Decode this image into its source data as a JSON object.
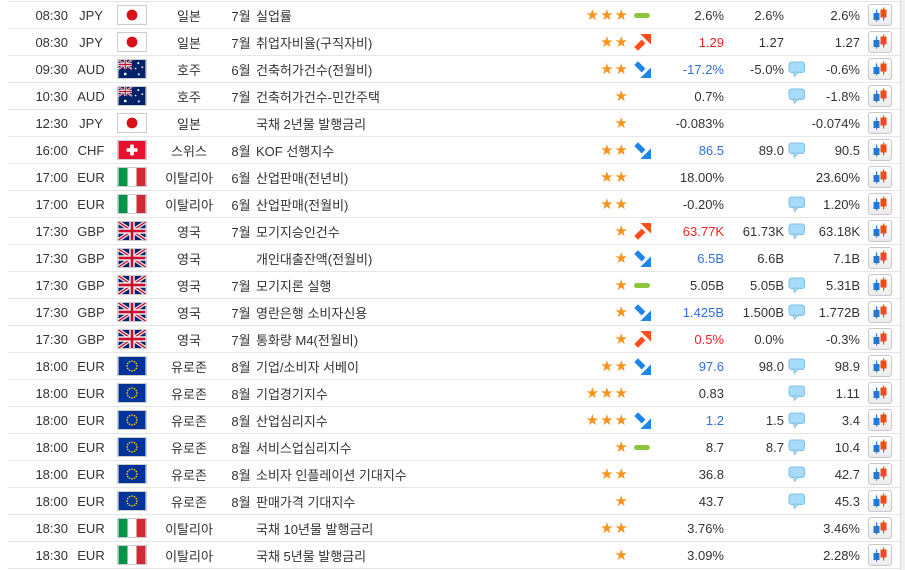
{
  "table_name": "economic-calendar",
  "colors": {
    "text": "#333333",
    "row_border": "#e6e6e6",
    "star_orange": "#F7941D",
    "trend_up_arrow": "#FF4E1C",
    "trend_down_arrow": "#1E86E8",
    "trend_flat_dash": "#8CC63F",
    "actual_up_text": "#f22222",
    "actual_down_text": "#2e6fe0",
    "bubble_fill": "#A8DBF7",
    "bubble_border": "#7FC0E6",
    "candle_blue": "#2478D2",
    "candle_orange": "#F4491C"
  },
  "icons": {
    "star_glyph": "★",
    "importance": "star-icon",
    "trend_up": "diagonal-up-arrow",
    "trend_down": "diagonal-down-arrow",
    "trend_flat": "green-dash",
    "comment": "speech-bubble",
    "chart": "candlestick-chart"
  },
  "rows": [
    {
      "time": "08:30",
      "currency": "JPY",
      "flag": "japan",
      "country": "일본",
      "month": "7월",
      "event": "실업률",
      "stars": 3,
      "trend": "flat",
      "actual": "2.6%",
      "actual_color": "default",
      "forecast": "2.6%",
      "has_bubble": false,
      "previous": "2.6%"
    },
    {
      "time": "08:30",
      "currency": "JPY",
      "flag": "japan",
      "country": "일본",
      "month": "7월",
      "event": "취업자비율(구직자비)",
      "stars": 2,
      "trend": "up",
      "actual": "1.29",
      "actual_color": "red",
      "forecast": "1.27",
      "has_bubble": false,
      "previous": "1.27"
    },
    {
      "time": "09:30",
      "currency": "AUD",
      "flag": "australia",
      "country": "호주",
      "month": "6월",
      "event": "건축허가건수(전월비)",
      "stars": 2,
      "trend": "down",
      "actual": "-17.2%",
      "actual_color": "blue",
      "forecast": "-5.0%",
      "has_bubble": true,
      "previous": "-0.6%"
    },
    {
      "time": "10:30",
      "currency": "AUD",
      "flag": "australia",
      "country": "호주",
      "month": "7월",
      "event": "건축허가건수-민간주택",
      "stars": 1,
      "trend": "none",
      "actual": "0.7%",
      "actual_color": "default",
      "forecast": "",
      "has_bubble": true,
      "previous": "-1.8%"
    },
    {
      "time": "12:30",
      "currency": "JPY",
      "flag": "japan",
      "country": "일본",
      "month": "",
      "event": "국채 2년물 발행금리",
      "stars": 1,
      "trend": "none",
      "actual": "-0.083%",
      "actual_color": "default",
      "forecast": "",
      "has_bubble": false,
      "previous": "-0.074%"
    },
    {
      "time": "16:00",
      "currency": "CHF",
      "flag": "switzerland",
      "country": "스위스",
      "month": "8월",
      "event": "KOF 선행지수",
      "stars": 2,
      "trend": "down",
      "actual": "86.5",
      "actual_color": "blue",
      "forecast": "89.0",
      "has_bubble": true,
      "previous": "90.5"
    },
    {
      "time": "17:00",
      "currency": "EUR",
      "flag": "italy",
      "country": "이탈리아",
      "month": "6월",
      "event": "산업판매(전년비)",
      "stars": 2,
      "trend": "none",
      "actual": "18.00%",
      "actual_color": "default",
      "forecast": "",
      "has_bubble": false,
      "previous": "23.60%"
    },
    {
      "time": "17:00",
      "currency": "EUR",
      "flag": "italy",
      "country": "이탈리아",
      "month": "6월",
      "event": "산업판매(전월비)",
      "stars": 2,
      "trend": "none",
      "actual": "-0.20%",
      "actual_color": "default",
      "forecast": "",
      "has_bubble": true,
      "previous": "1.20%"
    },
    {
      "time": "17:30",
      "currency": "GBP",
      "flag": "uk",
      "country": "영국",
      "month": "7월",
      "event": "모기지승인건수",
      "stars": 1,
      "trend": "up",
      "actual": "63.77K",
      "actual_color": "red",
      "forecast": "61.73K",
      "has_bubble": true,
      "previous": "63.18K"
    },
    {
      "time": "17:30",
      "currency": "GBP",
      "flag": "uk",
      "country": "영국",
      "month": "",
      "event": "개인대출잔액(전월비)",
      "stars": 1,
      "trend": "down",
      "actual": "6.5B",
      "actual_color": "blue",
      "forecast": "6.6B",
      "has_bubble": false,
      "previous": "7.1B"
    },
    {
      "time": "17:30",
      "currency": "GBP",
      "flag": "uk",
      "country": "영국",
      "month": "7월",
      "event": "모기지론 실행",
      "stars": 1,
      "trend": "flat",
      "actual": "5.05B",
      "actual_color": "default",
      "forecast": "5.05B",
      "has_bubble": true,
      "previous": "5.31B"
    },
    {
      "time": "17:30",
      "currency": "GBP",
      "flag": "uk",
      "country": "영국",
      "month": "7월",
      "event": "영란은행 소비자신용",
      "stars": 1,
      "trend": "down",
      "actual": "1.425B",
      "actual_color": "blue",
      "forecast": "1.500B",
      "has_bubble": true,
      "previous": "1.772B"
    },
    {
      "time": "17:30",
      "currency": "GBP",
      "flag": "uk",
      "country": "영국",
      "month": "7월",
      "event": "통화량 M4(전월비)",
      "stars": 1,
      "trend": "up",
      "actual": "0.5%",
      "actual_color": "red",
      "forecast": "0.0%",
      "has_bubble": false,
      "previous": "-0.3%"
    },
    {
      "time": "18:00",
      "currency": "EUR",
      "flag": "eu",
      "country": "유로존",
      "month": "8월",
      "event": "기업/소비자 서베이",
      "stars": 2,
      "trend": "down",
      "actual": "97.6",
      "actual_color": "blue",
      "forecast": "98.0",
      "has_bubble": true,
      "previous": "98.9"
    },
    {
      "time": "18:00",
      "currency": "EUR",
      "flag": "eu",
      "country": "유로존",
      "month": "8월",
      "event": "기업경기지수",
      "stars": 3,
      "trend": "none",
      "actual": "0.83",
      "actual_color": "default",
      "forecast": "",
      "has_bubble": true,
      "previous": "1.11"
    },
    {
      "time": "18:00",
      "currency": "EUR",
      "flag": "eu",
      "country": "유로존",
      "month": "8월",
      "event": "산업심리지수",
      "stars": 3,
      "trend": "down",
      "actual": "1.2",
      "actual_color": "blue",
      "forecast": "1.5",
      "has_bubble": true,
      "previous": "3.4"
    },
    {
      "time": "18:00",
      "currency": "EUR",
      "flag": "eu",
      "country": "유로존",
      "month": "8월",
      "event": "서비스업심리지수",
      "stars": 1,
      "trend": "flat",
      "actual": "8.7",
      "actual_color": "default",
      "forecast": "8.7",
      "has_bubble": true,
      "previous": "10.4"
    },
    {
      "time": "18:00",
      "currency": "EUR",
      "flag": "eu",
      "country": "유로존",
      "month": "8월",
      "event": "소비자 인플레이션 기대지수",
      "stars": 2,
      "trend": "none",
      "actual": "36.8",
      "actual_color": "default",
      "forecast": "",
      "has_bubble": true,
      "previous": "42.7"
    },
    {
      "time": "18:00",
      "currency": "EUR",
      "flag": "eu",
      "country": "유로존",
      "month": "8월",
      "event": "판매가격 기대지수",
      "stars": 1,
      "trend": "none",
      "actual": "43.7",
      "actual_color": "default",
      "forecast": "",
      "has_bubble": true,
      "previous": "45.3"
    },
    {
      "time": "18:30",
      "currency": "EUR",
      "flag": "italy",
      "country": "이탈리아",
      "month": "",
      "event": "국채 10년물 발행금리",
      "stars": 2,
      "trend": "none",
      "actual": "3.76%",
      "actual_color": "default",
      "forecast": "",
      "has_bubble": false,
      "previous": "3.46%"
    },
    {
      "time": "18:30",
      "currency": "EUR",
      "flag": "italy",
      "country": "이탈리아",
      "month": "",
      "event": "국채 5년물 발행금리",
      "stars": 1,
      "trend": "none",
      "actual": "3.09%",
      "actual_color": "default",
      "forecast": "",
      "has_bubble": false,
      "previous": "2.28%"
    }
  ]
}
